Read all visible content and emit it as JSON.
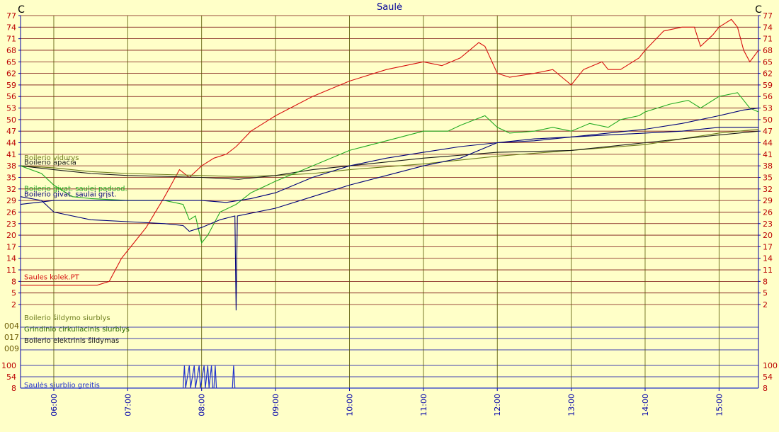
{
  "chart_data": {
    "type": "line",
    "title": "Saulė",
    "unit_left": "C",
    "unit_right": "C",
    "colors": {
      "background": "#ffffc8",
      "grid_horizontal": "#7a1010",
      "grid_vertical": "#555500",
      "axis": "#0000aa",
      "title": "#000099",
      "tick_red": "#bb0000"
    },
    "y_ticks": [
      77,
      74,
      71,
      68,
      65,
      62,
      59,
      56,
      53,
      50,
      47,
      44,
      41,
      38,
      35,
      32,
      29,
      26,
      23,
      20,
      17,
      14,
      11,
      8,
      5,
      2
    ],
    "ylim": [
      0,
      77
    ],
    "x_ticks": [
      "06:00",
      "07:00",
      "08:00",
      "09:00",
      "10:00",
      "11:00",
      "12:00",
      "13:00",
      "14:00",
      "15:00"
    ],
    "xlim": [
      "05:33",
      "15:32"
    ],
    "temperature_series": [
      {
        "name": "Saules kolek.PT",
        "color": "#d81010",
        "label_y": 8.5,
        "points": [
          [
            "05:33",
            7
          ],
          [
            "05:45",
            7
          ],
          [
            "06:35",
            7
          ],
          [
            "06:45",
            8
          ],
          [
            "06:55",
            14
          ],
          [
            "07:05",
            18
          ],
          [
            "07:15",
            22
          ],
          [
            "07:30",
            30
          ],
          [
            "07:42",
            37
          ],
          [
            "07:50",
            35
          ],
          [
            "08:00",
            38
          ],
          [
            "08:10",
            40
          ],
          [
            "08:20",
            41
          ],
          [
            "08:28",
            43
          ],
          [
            "08:40",
            47
          ],
          [
            "09:00",
            51
          ],
          [
            "09:30",
            56
          ],
          [
            "10:00",
            60
          ],
          [
            "10:30",
            63
          ],
          [
            "11:00",
            65
          ],
          [
            "11:15",
            64
          ],
          [
            "11:30",
            66
          ],
          [
            "11:45",
            70
          ],
          [
            "11:50",
            69
          ],
          [
            "12:00",
            62
          ],
          [
            "12:10",
            61
          ],
          [
            "12:30",
            62
          ],
          [
            "12:45",
            63
          ],
          [
            "13:00",
            59
          ],
          [
            "13:10",
            63
          ],
          [
            "13:25",
            65
          ],
          [
            "13:30",
            63
          ],
          [
            "13:40",
            63
          ],
          [
            "13:55",
            66
          ],
          [
            "14:00",
            68
          ],
          [
            "14:15",
            73
          ],
          [
            "14:30",
            74
          ],
          [
            "14:40",
            74
          ],
          [
            "14:45",
            69
          ],
          [
            "14:55",
            72
          ],
          [
            "15:00",
            74
          ],
          [
            "15:10",
            76
          ],
          [
            "15:15",
            74
          ],
          [
            "15:20",
            68
          ],
          [
            "15:25",
            65
          ],
          [
            "15:32",
            68
          ]
        ]
      },
      {
        "name": "Boilerio vidurys",
        "color": "#6d7d1c",
        "label_y": 39.5,
        "points": [
          [
            "05:33",
            38
          ],
          [
            "06:00",
            37.5
          ],
          [
            "06:30",
            36.5
          ],
          [
            "07:00",
            36
          ],
          [
            "08:00",
            35.5
          ],
          [
            "08:30",
            35.2
          ],
          [
            "09:00",
            35.5
          ],
          [
            "09:30",
            36
          ],
          [
            "10:00",
            37
          ],
          [
            "11:00",
            38.5
          ],
          [
            "12:00",
            40.5
          ],
          [
            "13:00",
            42
          ],
          [
            "14:00",
            43.5
          ],
          [
            "15:00",
            46.5
          ],
          [
            "15:32",
            47.5
          ]
        ]
      },
      {
        "name": "Boilerio apačia",
        "color": "#1a1a1a",
        "label_y": 38.3,
        "points": [
          [
            "05:33",
            38
          ],
          [
            "06:00",
            37
          ],
          [
            "06:30",
            36
          ],
          [
            "07:00",
            35.5
          ],
          [
            "08:00",
            35
          ],
          [
            "08:30",
            34.5
          ],
          [
            "09:00",
            35.5
          ],
          [
            "09:30",
            37
          ],
          [
            "10:00",
            38
          ],
          [
            "11:00",
            40
          ],
          [
            "12:00",
            41.5
          ],
          [
            "13:00",
            42
          ],
          [
            "14:00",
            44
          ],
          [
            "15:00",
            46
          ],
          [
            "15:32",
            47
          ]
        ]
      },
      {
        "name": "Boilerio givat. saulei paduod.",
        "color": "#22aa22",
        "label_y": 31.5,
        "points": [
          [
            "05:33",
            38
          ],
          [
            "05:50",
            36
          ],
          [
            "06:00",
            33
          ],
          [
            "06:15",
            30
          ],
          [
            "06:30",
            29.5
          ],
          [
            "07:00",
            29
          ],
          [
            "07:30",
            29
          ],
          [
            "07:45",
            28
          ],
          [
            "07:50",
            24
          ],
          [
            "07:55",
            25
          ],
          [
            "08:00",
            18
          ],
          [
            "08:05",
            20
          ],
          [
            "08:15",
            26
          ],
          [
            "08:28",
            28
          ],
          [
            "08:40",
            31
          ],
          [
            "09:00",
            34
          ],
          [
            "09:30",
            38
          ],
          [
            "10:00",
            42
          ],
          [
            "10:30",
            44.5
          ],
          [
            "11:00",
            47
          ],
          [
            "11:20",
            47
          ],
          [
            "11:30",
            48.5
          ],
          [
            "11:50",
            51
          ],
          [
            "12:00",
            48
          ],
          [
            "12:10",
            46.5
          ],
          [
            "12:30",
            47
          ],
          [
            "12:45",
            48
          ],
          [
            "13:00",
            47
          ],
          [
            "13:15",
            49
          ],
          [
            "13:30",
            48
          ],
          [
            "13:40",
            50
          ],
          [
            "13:55",
            51
          ],
          [
            "14:00",
            52
          ],
          [
            "14:20",
            54
          ],
          [
            "14:35",
            55
          ],
          [
            "14:45",
            53
          ],
          [
            "15:00",
            56
          ],
          [
            "15:15",
            57
          ],
          [
            "15:25",
            53
          ],
          [
            "15:32",
            52
          ]
        ]
      },
      {
        "name": "Boilerio givat. saulai grįst.",
        "color": "#00007a",
        "label_y": 30.0,
        "points": [
          [
            "05:33",
            30
          ],
          [
            "05:50",
            29
          ],
          [
            "06:00",
            26
          ],
          [
            "06:30",
            24
          ],
          [
            "07:00",
            23.5
          ],
          [
            "07:30",
            23
          ],
          [
            "07:45",
            22.5
          ],
          [
            "07:50",
            21
          ],
          [
            "08:00",
            22
          ],
          [
            "08:15",
            24
          ],
          [
            "08:27",
            25
          ],
          [
            "08:28",
            0.5
          ],
          [
            "08:29",
            25
          ],
          [
            "09:00",
            27
          ],
          [
            "09:30",
            30
          ],
          [
            "10:00",
            33
          ],
          [
            "10:30",
            35.5
          ],
          [
            "11:00",
            38
          ],
          [
            "11:30",
            40
          ],
          [
            "12:00",
            44
          ],
          [
            "12:30",
            44.5
          ],
          [
            "13:00",
            45.5
          ],
          [
            "13:30",
            46.5
          ],
          [
            "14:00",
            47.5
          ],
          [
            "14:30",
            49
          ],
          [
            "15:00",
            51
          ],
          [
            "15:20",
            52.5
          ],
          [
            "15:32",
            53
          ]
        ]
      },
      {
        "name": "",
        "color": "#00007a",
        "points": [
          [
            "05:33",
            28
          ],
          [
            "06:00",
            29
          ],
          [
            "06:30",
            29
          ],
          [
            "07:00",
            29
          ],
          [
            "07:30",
            29
          ],
          [
            "08:00",
            29
          ],
          [
            "08:20",
            28.5
          ],
          [
            "08:40",
            29.5
          ],
          [
            "09:00",
            31
          ],
          [
            "09:30",
            35
          ],
          [
            "10:00",
            38
          ],
          [
            "10:30",
            40
          ],
          [
            "11:00",
            41.5
          ],
          [
            "11:30",
            43
          ],
          [
            "12:00",
            44
          ],
          [
            "12:30",
            45
          ],
          [
            "13:00",
            45.5
          ],
          [
            "13:30",
            46
          ],
          [
            "14:00",
            46.5
          ],
          [
            "14:30",
            47
          ],
          [
            "15:00",
            48
          ],
          [
            "15:32",
            48
          ]
        ]
      }
    ],
    "digital_series": [
      {
        "name": "Boilerio šildymo  siurblys",
        "value": "004",
        "color": "#6d7d1c"
      },
      {
        "name": "Grindinio cirkuliacinis siurblys",
        "value": "017",
        "color": "#2a6a00"
      },
      {
        "name": "Boilerio elektrinis šildymas",
        "value": "009",
        "color": "#1a1a1a"
      }
    ],
    "pump_speed": {
      "name": "Saulės siurblio greitis",
      "color": "#2233cc",
      "ticks": [
        100,
        54,
        8
      ],
      "points": [
        [
          "05:33",
          8
        ],
        [
          "07:45",
          8
        ],
        [
          "07:46",
          100
        ],
        [
          "07:47",
          8
        ],
        [
          "07:50",
          100
        ],
        [
          "07:51",
          8
        ],
        [
          "07:54",
          100
        ],
        [
          "07:55",
          8
        ],
        [
          "07:58",
          100
        ],
        [
          "07:59",
          8
        ],
        [
          "08:02",
          100
        ],
        [
          "08:03",
          8
        ],
        [
          "08:05",
          100
        ],
        [
          "08:06",
          8
        ],
        [
          "08:08",
          100
        ],
        [
          "08:09",
          8
        ],
        [
          "08:10",
          8
        ],
        [
          "08:11",
          100
        ],
        [
          "08:12",
          8
        ],
        [
          "08:25",
          8
        ],
        [
          "08:26",
          100
        ],
        [
          "08:27",
          8
        ],
        [
          "15:32",
          8
        ]
      ]
    }
  }
}
